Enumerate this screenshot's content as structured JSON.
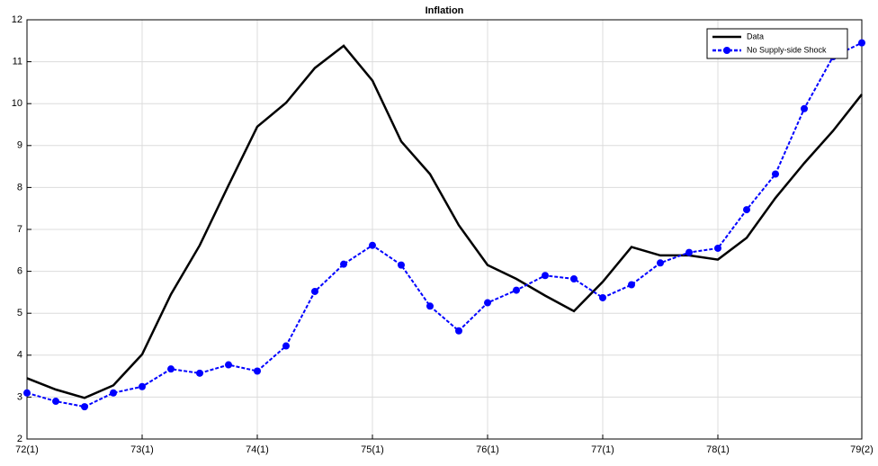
{
  "chart_data": {
    "type": "line",
    "title": "Inflation",
    "categories": [
      "72(1)",
      null,
      null,
      null,
      "73(1)",
      null,
      null,
      null,
      "74(1)",
      null,
      null,
      null,
      "75(1)",
      null,
      null,
      null,
      "76(1)",
      null,
      null,
      null,
      "77(1)",
      null,
      null,
      null,
      "78(1)",
      null,
      null,
      null,
      null,
      "79(2)"
    ],
    "series": [
      {
        "name": "Data",
        "color": "#000000",
        "values": [
          3.45,
          3.18,
          2.98,
          3.28,
          4.02,
          5.45,
          6.62,
          8.05,
          9.45,
          10.02,
          10.85,
          11.38,
          10.55,
          9.1,
          8.32,
          7.1,
          6.15,
          5.82,
          5.42,
          5.05,
          5.75,
          6.58,
          6.38,
          6.38,
          6.28,
          6.8,
          7.75,
          8.58,
          9.35,
          10.22
        ]
      },
      {
        "name": "No Supply-side Shock",
        "color": "#0000ff",
        "values": [
          3.1,
          2.9,
          2.77,
          3.1,
          3.25,
          3.67,
          3.57,
          3.77,
          3.62,
          4.22,
          5.52,
          6.17,
          6.62,
          6.15,
          5.17,
          4.58,
          5.25,
          5.55,
          5.9,
          5.82,
          5.37,
          5.68,
          6.2,
          6.45,
          6.55,
          7.47,
          8.32,
          9.88,
          11.12,
          11.45
        ]
      }
    ],
    "ylim": [
      2,
      12
    ],
    "yticks": [
      2,
      3,
      4,
      5,
      6,
      7,
      8,
      9,
      10,
      11,
      12
    ],
    "grid": true,
    "legend": "top-right"
  }
}
